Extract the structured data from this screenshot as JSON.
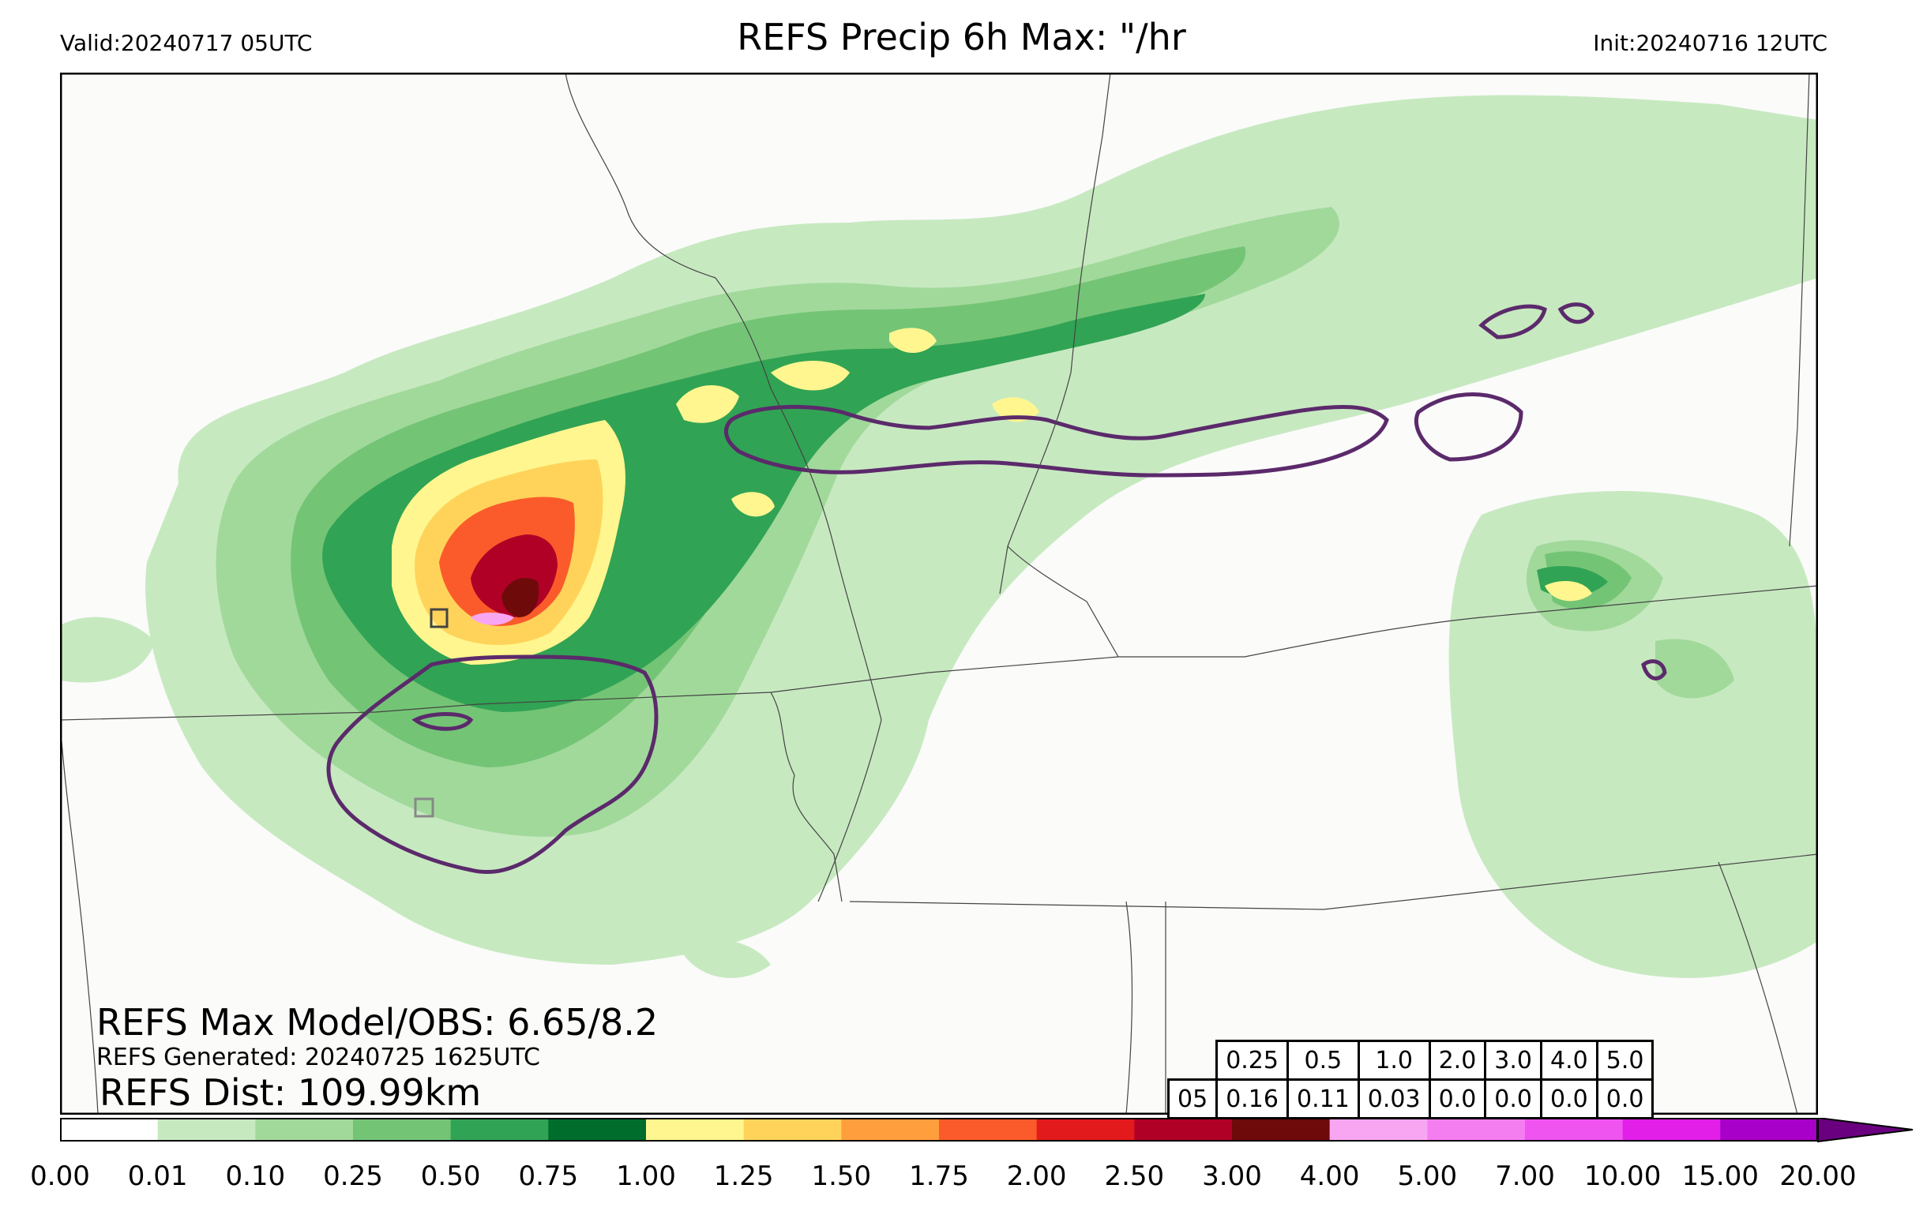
{
  "header": {
    "valid": "Valid:20240717 05UTC",
    "title": "REFS Precip 6h Max: \"/hr",
    "init": "Init:20240716 12UTC"
  },
  "annotations": {
    "max_model_obs": "REFS Max Model/OBS: 6.65/8.2",
    "generated": "REFS Generated: 20240725 1625UTC",
    "distance": "REFS Dist: 109.99km"
  },
  "stats_table": {
    "thresholds": [
      "0.25",
      "0.5",
      "1.0",
      "2.0",
      "3.0",
      "4.0",
      "5.0"
    ],
    "row_label": "05",
    "values": [
      "0.16",
      "0.11",
      "0.03",
      "0.0",
      "0.0",
      "0.0",
      "0.0"
    ]
  },
  "colorbar": {
    "ticks": [
      "0.00",
      "0.01",
      "0.10",
      "0.25",
      "0.50",
      "0.75",
      "1.00",
      "1.25",
      "1.50",
      "1.75",
      "2.00",
      "2.50",
      "3.00",
      "4.00",
      "5.00",
      "7.00",
      "10.00",
      "15.00",
      "20.00"
    ],
    "colors": [
      "#ffffff",
      "#c7e9c0",
      "#a1d99b",
      "#74c476",
      "#31a354",
      "#006d2c",
      "#fff68f",
      "#ffd35a",
      "#ff9e3d",
      "#fb5b2a",
      "#e31a1c",
      "#b10026",
      "#6e0a0a",
      "#f9a6f2",
      "#f47ef0",
      "#f054f0",
      "#e21fe8",
      "#a800c8"
    ],
    "extend_color": "#6a0080"
  },
  "map_colors": {
    "background": "#fbfbfa",
    "contour": "#5b2a6b",
    "border": "#444444"
  }
}
